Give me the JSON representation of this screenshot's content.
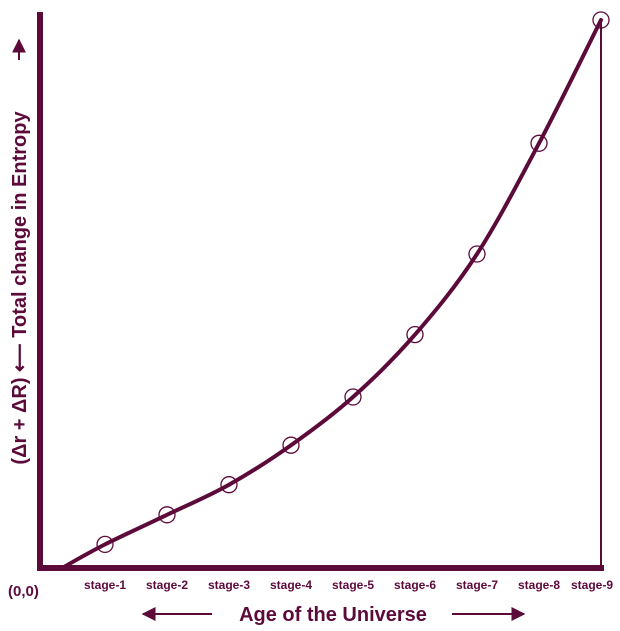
{
  "colors": {
    "ink": "#5c0a3a"
  },
  "chart_data": {
    "type": "line",
    "title": "",
    "xlabel": "Age of the Universe",
    "ylabel": "(Δr + ΔR) ⟵ Total change in Entropy",
    "origin_label": "(0,0)",
    "categories": [
      "stage-1",
      "stage-2",
      "stage-3",
      "stage-4",
      "stage-5",
      "stage-6",
      "stage-7",
      "stage-8",
      "stage-9"
    ],
    "values": [
      4.3,
      9.7,
      15.2,
      22.4,
      31.2,
      42.6,
      57.3,
      77.5,
      100
    ],
    "ylim": [
      0,
      100
    ],
    "grid": false,
    "legend": "none",
    "y_ticks_shown": false,
    "marker": "open-circle",
    "curve_starts_at_origin": true
  }
}
